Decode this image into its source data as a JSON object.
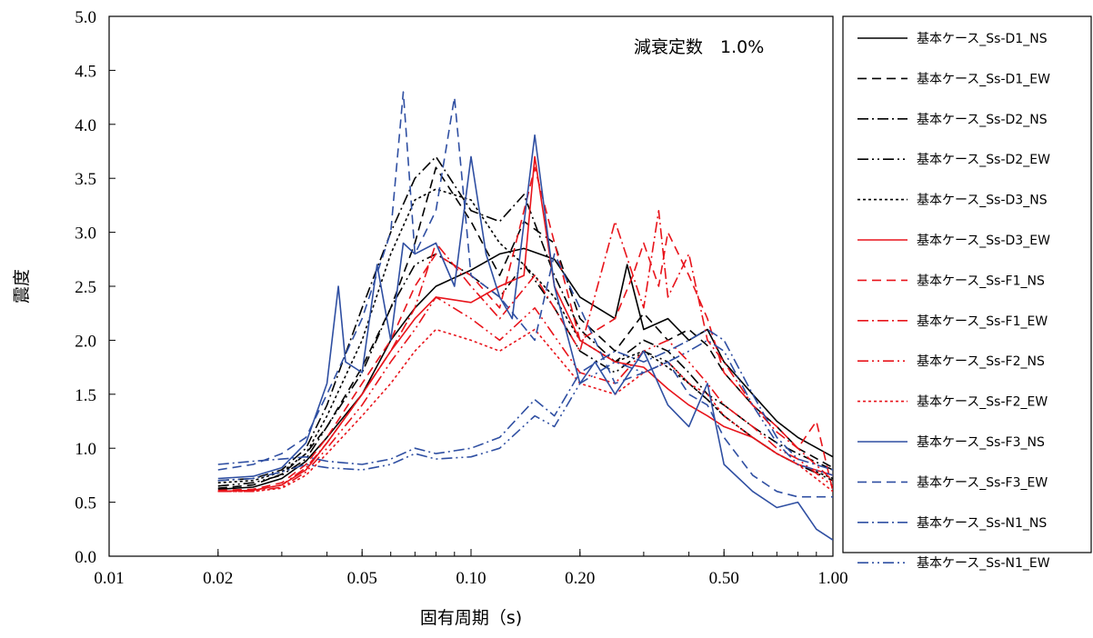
{
  "chart_data": {
    "type": "line",
    "title": "",
    "xlabel": "固有周期（s)",
    "ylabel": "震度",
    "x_scale": "log",
    "xlim": [
      0.01,
      1.0
    ],
    "ylim": [
      0.0,
      5.0
    ],
    "x_ticks": [
      {
        "value": 0.01,
        "label": "0.01"
      },
      {
        "value": 0.02,
        "label": "0.02"
      },
      {
        "value": 0.05,
        "label": "0.05"
      },
      {
        "value": 0.1,
        "label": "0.10"
      },
      {
        "value": 0.2,
        "label": "0.20"
      },
      {
        "value": 0.5,
        "label": "0.50"
      },
      {
        "value": 1.0,
        "label": "1.00"
      }
    ],
    "y_ticks": [
      {
        "value": 0.0,
        "label": "0.0"
      },
      {
        "value": 0.5,
        "label": "0.5"
      },
      {
        "value": 1.0,
        "label": "1.0"
      },
      {
        "value": 1.5,
        "label": "1.5"
      },
      {
        "value": 2.0,
        "label": "2.0"
      },
      {
        "value": 2.5,
        "label": "2.5"
      },
      {
        "value": 3.0,
        "label": "3.0"
      },
      {
        "value": 3.5,
        "label": "3.5"
      },
      {
        "value": 4.0,
        "label": "4.0"
      },
      {
        "value": 4.5,
        "label": "4.5"
      },
      {
        "value": 5.0,
        "label": "5.0"
      }
    ],
    "annotation": "減衰定数　1.0%",
    "grid": false,
    "legend_position": "right",
    "series": [
      {
        "name": "基本ケース_Ss-D1_NS",
        "color": "#000000",
        "dash": "solid",
        "x": [
          0.02,
          0.025,
          0.03,
          0.035,
          0.04,
          0.05,
          0.06,
          0.07,
          0.08,
          0.1,
          0.12,
          0.14,
          0.17,
          0.2,
          0.25,
          0.27,
          0.3,
          0.35,
          0.4,
          0.45,
          0.5,
          0.6,
          0.7,
          0.8,
          1.0
        ],
        "y": [
          0.62,
          0.64,
          0.72,
          0.88,
          1.1,
          1.5,
          2.0,
          2.3,
          2.5,
          2.65,
          2.8,
          2.85,
          2.75,
          2.4,
          2.2,
          2.7,
          2.1,
          2.2,
          2.0,
          2.1,
          1.8,
          1.5,
          1.25,
          1.1,
          0.92
        ]
      },
      {
        "name": "基本ケース_Ss-D1_EW",
        "color": "#000000",
        "dash": "10,6",
        "x": [
          0.02,
          0.025,
          0.03,
          0.035,
          0.04,
          0.05,
          0.06,
          0.07,
          0.08,
          0.1,
          0.12,
          0.14,
          0.17,
          0.2,
          0.25,
          0.3,
          0.35,
          0.4,
          0.45,
          0.5,
          0.6,
          0.7,
          0.8,
          1.0
        ],
        "y": [
          0.63,
          0.66,
          0.76,
          0.95,
          1.2,
          1.75,
          2.3,
          2.9,
          3.6,
          3.1,
          2.6,
          3.1,
          2.9,
          2.2,
          1.9,
          2.25,
          2.0,
          2.1,
          1.95,
          1.7,
          1.4,
          1.2,
          1.0,
          0.82
        ]
      },
      {
        "name": "基本ケース_Ss-D2_NS",
        "color": "#000000",
        "dash": "12,4,2,4",
        "x": [
          0.02,
          0.025,
          0.03,
          0.035,
          0.04,
          0.05,
          0.06,
          0.07,
          0.08,
          0.1,
          0.12,
          0.14,
          0.17,
          0.2,
          0.25,
          0.3,
          0.35,
          0.4,
          0.45,
          0.5,
          0.6,
          0.7,
          0.8,
          1.0
        ],
        "y": [
          0.7,
          0.72,
          0.8,
          1.0,
          1.4,
          2.3,
          3.0,
          3.5,
          3.7,
          3.2,
          3.1,
          3.35,
          2.6,
          2.1,
          1.8,
          2.0,
          1.9,
          1.7,
          1.5,
          1.4,
          1.2,
          1.05,
          0.95,
          0.8
        ]
      },
      {
        "name": "基本ケース_Ss-D2_EW",
        "color": "#000000",
        "dash": "12,4,2,4,2,4",
        "x": [
          0.02,
          0.025,
          0.03,
          0.035,
          0.04,
          0.05,
          0.06,
          0.07,
          0.08,
          0.1,
          0.12,
          0.14,
          0.17,
          0.2,
          0.25,
          0.3,
          0.35,
          0.4,
          0.45,
          0.5,
          0.6,
          0.7,
          0.8,
          1.0
        ],
        "y": [
          0.65,
          0.68,
          0.75,
          0.9,
          1.2,
          1.7,
          2.3,
          2.7,
          2.8,
          2.6,
          2.4,
          2.7,
          2.3,
          1.9,
          1.7,
          1.9,
          1.8,
          1.6,
          1.45,
          1.3,
          1.1,
          0.95,
          0.85,
          0.7
        ]
      },
      {
        "name": "基本ケース_Ss-D3_NS",
        "color": "#000000",
        "dash": "3,3",
        "x": [
          0.02,
          0.025,
          0.03,
          0.035,
          0.04,
          0.05,
          0.06,
          0.07,
          0.08,
          0.1,
          0.12,
          0.14,
          0.17,
          0.2,
          0.25,
          0.3,
          0.35,
          0.4,
          0.45,
          0.5,
          0.6,
          0.7,
          0.8,
          1.0
        ],
        "y": [
          0.68,
          0.7,
          0.78,
          0.95,
          1.3,
          2.0,
          2.8,
          3.3,
          3.4,
          3.3,
          2.9,
          2.7,
          2.4,
          2.0,
          1.8,
          1.9,
          1.75,
          1.6,
          1.45,
          1.3,
          1.1,
          0.95,
          0.85,
          0.72
        ]
      },
      {
        "name": "基本ケース_Ss-D3_EW",
        "color": "#e8141b",
        "dash": "solid",
        "x": [
          0.02,
          0.025,
          0.03,
          0.035,
          0.04,
          0.05,
          0.06,
          0.07,
          0.08,
          0.1,
          0.12,
          0.14,
          0.15,
          0.17,
          0.2,
          0.25,
          0.3,
          0.35,
          0.4,
          0.45,
          0.5,
          0.6,
          0.7,
          0.8,
          1.0
        ],
        "y": [
          0.6,
          0.61,
          0.66,
          0.8,
          1.05,
          1.5,
          1.9,
          2.2,
          2.4,
          2.35,
          2.5,
          2.6,
          3.7,
          2.5,
          2.0,
          1.8,
          1.75,
          1.55,
          1.4,
          1.3,
          1.2,
          1.1,
          0.95,
          0.85,
          0.75
        ]
      },
      {
        "name": "基本ケース_Ss-F1_NS",
        "color": "#e8141b",
        "dash": "10,6",
        "x": [
          0.02,
          0.025,
          0.03,
          0.035,
          0.04,
          0.05,
          0.06,
          0.07,
          0.08,
          0.1,
          0.12,
          0.15,
          0.2,
          0.25,
          0.28,
          0.3,
          0.33,
          0.35,
          0.4,
          0.45,
          0.5,
          0.6,
          0.7,
          0.8,
          0.9,
          1.0
        ],
        "y": [
          0.61,
          0.62,
          0.68,
          0.85,
          1.1,
          1.6,
          2.0,
          2.5,
          2.8,
          2.6,
          2.3,
          3.6,
          2.0,
          2.2,
          2.6,
          2.9,
          2.5,
          3.0,
          2.6,
          2.2,
          1.7,
          1.4,
          1.2,
          1.0,
          1.25,
          0.6
        ]
      },
      {
        "name": "基本ケース_Ss-F1_EW",
        "color": "#e8141b",
        "dash": "12,4,2,4",
        "x": [
          0.02,
          0.025,
          0.03,
          0.035,
          0.04,
          0.05,
          0.06,
          0.07,
          0.08,
          0.1,
          0.12,
          0.15,
          0.2,
          0.25,
          0.3,
          0.33,
          0.35,
          0.4,
          0.45,
          0.5,
          0.6,
          0.7,
          0.8,
          1.0
        ],
        "y": [
          0.6,
          0.61,
          0.66,
          0.82,
          1.05,
          1.5,
          1.9,
          2.3,
          2.9,
          2.5,
          2.2,
          2.6,
          1.9,
          3.1,
          2.3,
          3.2,
          2.4,
          2.8,
          2.0,
          1.8,
          1.4,
          1.15,
          1.0,
          0.7
        ]
      },
      {
        "name": "基本ケース_Ss-F2_NS",
        "color": "#e8141b",
        "dash": "12,4,2,4,2,4",
        "x": [
          0.02,
          0.025,
          0.03,
          0.035,
          0.04,
          0.05,
          0.06,
          0.07,
          0.08,
          0.1,
          0.12,
          0.15,
          0.2,
          0.25,
          0.3,
          0.35,
          0.4,
          0.45,
          0.5,
          0.6,
          0.7,
          0.8,
          1.0
        ],
        "y": [
          0.6,
          0.6,
          0.64,
          0.78,
          1.0,
          1.4,
          1.8,
          2.1,
          2.4,
          2.2,
          2.0,
          2.3,
          1.7,
          1.6,
          1.9,
          2.0,
          1.8,
          1.6,
          1.4,
          1.2,
          1.0,
          0.9,
          0.65
        ]
      },
      {
        "name": "基本ケース_Ss-F2_EW",
        "color": "#e8141b",
        "dash": "3,3",
        "x": [
          0.02,
          0.025,
          0.03,
          0.035,
          0.04,
          0.05,
          0.06,
          0.07,
          0.08,
          0.1,
          0.12,
          0.15,
          0.2,
          0.25,
          0.3,
          0.35,
          0.4,
          0.45,
          0.5,
          0.6,
          0.7,
          0.8,
          1.0
        ],
        "y": [
          0.6,
          0.6,
          0.63,
          0.75,
          0.95,
          1.3,
          1.6,
          1.9,
          2.1,
          2.0,
          1.9,
          2.1,
          1.6,
          1.5,
          1.7,
          1.8,
          1.6,
          1.5,
          1.3,
          1.1,
          0.95,
          0.85,
          0.6
        ]
      },
      {
        "name": "基本ケース_Ss-F3_NS",
        "color": "#2f4fa2",
        "dash": "solid",
        "x": [
          0.02,
          0.025,
          0.03,
          0.035,
          0.04,
          0.043,
          0.045,
          0.05,
          0.055,
          0.06,
          0.065,
          0.07,
          0.08,
          0.09,
          0.1,
          0.11,
          0.12,
          0.13,
          0.15,
          0.17,
          0.2,
          0.22,
          0.25,
          0.3,
          0.35,
          0.4,
          0.45,
          0.5,
          0.6,
          0.7,
          0.8,
          0.9,
          1.0
        ],
        "y": [
          0.72,
          0.74,
          0.82,
          1.05,
          1.6,
          2.5,
          1.8,
          1.7,
          2.7,
          2.0,
          2.9,
          2.8,
          2.9,
          2.5,
          3.7,
          2.8,
          2.4,
          2.2,
          3.9,
          2.5,
          1.6,
          1.8,
          1.5,
          1.9,
          1.4,
          1.2,
          1.6,
          0.85,
          0.6,
          0.45,
          0.5,
          0.25,
          0.15
        ]
      },
      {
        "name": "基本ケース_Ss-F3_EW",
        "color": "#2f4fa2",
        "dash": "10,6",
        "x": [
          0.02,
          0.025,
          0.03,
          0.035,
          0.04,
          0.05,
          0.06,
          0.065,
          0.07,
          0.08,
          0.09,
          0.1,
          0.12,
          0.15,
          0.17,
          0.2,
          0.25,
          0.3,
          0.35,
          0.4,
          0.45,
          0.5,
          0.6,
          0.7,
          0.8,
          1.0
        ],
        "y": [
          0.8,
          0.85,
          0.95,
          1.1,
          1.5,
          2.2,
          3.0,
          4.3,
          2.8,
          3.2,
          4.25,
          2.6,
          2.4,
          2.0,
          2.8,
          2.3,
          1.6,
          1.7,
          1.8,
          1.5,
          1.4,
          1.1,
          0.75,
          0.6,
          0.55,
          0.55
        ]
      },
      {
        "name": "基本ケース_Ss-N1_NS",
        "color": "#2f4fa2",
        "dash": "12,4,2,4",
        "x": [
          0.02,
          0.025,
          0.03,
          0.035,
          0.04,
          0.05,
          0.06,
          0.07,
          0.08,
          0.1,
          0.12,
          0.15,
          0.17,
          0.2,
          0.25,
          0.3,
          0.35,
          0.4,
          0.45,
          0.5,
          0.6,
          0.7,
          0.8,
          1.0
        ],
        "y": [
          0.85,
          0.88,
          0.9,
          0.92,
          0.88,
          0.85,
          0.9,
          1.0,
          0.95,
          1.0,
          1.1,
          1.45,
          1.3,
          1.7,
          1.9,
          1.8,
          1.9,
          2.0,
          2.1,
          2.0,
          1.5,
          1.1,
          0.9,
          0.8
        ]
      },
      {
        "name": "基本ケース_Ss-N1_EW",
        "color": "#2f4fa2",
        "dash": "12,4,2,4,2,4",
        "x": [
          0.02,
          0.025,
          0.03,
          0.035,
          0.04,
          0.05,
          0.06,
          0.07,
          0.08,
          0.1,
          0.12,
          0.15,
          0.17,
          0.2,
          0.25,
          0.3,
          0.35,
          0.4,
          0.45,
          0.5,
          0.6,
          0.7,
          0.8,
          1.0
        ],
        "y": [
          0.7,
          0.72,
          0.78,
          0.85,
          0.82,
          0.8,
          0.85,
          0.95,
          0.9,
          0.92,
          1.0,
          1.3,
          1.2,
          1.6,
          1.8,
          1.7,
          1.8,
          1.9,
          2.0,
          1.9,
          1.4,
          1.05,
          0.85,
          0.75
        ]
      }
    ]
  }
}
